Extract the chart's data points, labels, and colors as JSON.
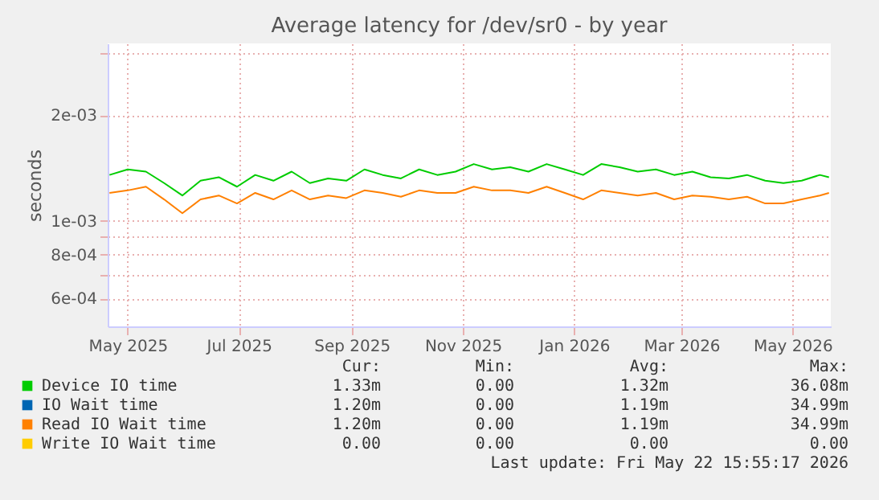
{
  "chart_data": {
    "type": "line",
    "title": "Average latency for /dev/sr0 - by year",
    "ylabel": "seconds",
    "x": [
      "2025-04-21",
      "2025-05-01",
      "2025-05-11",
      "2025-05-21",
      "2025-05-31",
      "2025-06-10",
      "2025-06-20",
      "2025-06-30",
      "2025-07-10",
      "2025-07-20",
      "2025-07-30",
      "2025-08-09",
      "2025-08-19",
      "2025-08-29",
      "2025-09-08",
      "2025-09-18",
      "2025-09-28",
      "2025-10-08",
      "2025-10-18",
      "2025-10-28",
      "2025-11-07",
      "2025-11-17",
      "2025-11-27",
      "2025-12-07",
      "2025-12-17",
      "2025-12-27",
      "2026-01-06",
      "2026-01-16",
      "2026-01-26",
      "2026-02-05",
      "2026-02-15",
      "2026-02-25",
      "2026-03-07",
      "2026-03-17",
      "2026-03-27",
      "2026-04-06",
      "2026-04-16",
      "2026-04-26",
      "2026-05-06",
      "2026-05-16",
      "2026-05-21"
    ],
    "series": [
      {
        "name": "Device IO time",
        "color": "#00cc00",
        "values": [
          0.00135,
          0.0014,
          0.00138,
          0.00128,
          0.00118,
          0.0013,
          0.00133,
          0.00125,
          0.00135,
          0.0013,
          0.00138,
          0.00128,
          0.00132,
          0.0013,
          0.0014,
          0.00135,
          0.00132,
          0.0014,
          0.00135,
          0.00138,
          0.00145,
          0.0014,
          0.00142,
          0.00138,
          0.00145,
          0.0014,
          0.00135,
          0.00145,
          0.00142,
          0.00138,
          0.0014,
          0.00135,
          0.00138,
          0.00133,
          0.00132,
          0.00135,
          0.0013,
          0.00128,
          0.0013,
          0.00135,
          0.00133
        ]
      },
      {
        "name": "IO Wait time",
        "color": "#0066b3",
        "values": [
          null,
          null,
          null,
          null,
          null,
          null,
          null,
          null,
          null,
          null,
          null,
          null,
          null,
          null,
          null,
          null,
          null,
          null,
          null,
          null,
          null,
          null,
          null,
          null,
          null,
          null,
          null,
          null,
          null,
          null,
          null,
          null,
          null,
          null,
          null,
          null,
          null,
          null,
          null,
          null,
          null
        ]
      },
      {
        "name": "Read IO Wait time",
        "color": "#ff8000",
        "values": [
          0.0012,
          0.00122,
          0.00125,
          0.00115,
          0.00105,
          0.00115,
          0.00118,
          0.00112,
          0.0012,
          0.00115,
          0.00122,
          0.00115,
          0.00118,
          0.00116,
          0.00122,
          0.0012,
          0.00117,
          0.00122,
          0.0012,
          0.0012,
          0.00125,
          0.00122,
          0.00122,
          0.0012,
          0.00125,
          0.0012,
          0.00115,
          0.00122,
          0.0012,
          0.00118,
          0.0012,
          0.00115,
          0.00118,
          0.00117,
          0.00115,
          0.00117,
          0.00112,
          0.00112,
          0.00115,
          0.00118,
          0.0012
        ]
      },
      {
        "name": "Write IO Wait time",
        "color": "#ffcc00",
        "values": [
          null,
          null,
          null,
          null,
          null,
          null,
          null,
          null,
          null,
          null,
          null,
          null,
          null,
          null,
          null,
          null,
          null,
          null,
          null,
          null,
          null,
          null,
          null,
          null,
          null,
          null,
          null,
          null,
          null,
          null,
          null,
          null,
          null,
          null,
          null,
          null,
          null,
          null,
          null,
          null,
          null
        ]
      }
    ],
    "xlim": [
      "2025-04-20",
      "2026-05-22"
    ],
    "xticks": [
      {
        "value": "2025-05-01",
        "label": "May 2025"
      },
      {
        "value": "2025-07-01",
        "label": "Jul 2025"
      },
      {
        "value": "2025-09-01",
        "label": "Sep 2025"
      },
      {
        "value": "2025-11-01",
        "label": "Nov 2025"
      },
      {
        "value": "2026-01-01",
        "label": "Jan 2026"
      },
      {
        "value": "2026-03-01",
        "label": "Mar 2026"
      },
      {
        "value": "2026-05-01",
        "label": "May 2026"
      }
    ],
    "ylim": [
      0.0005,
      0.0032
    ],
    "log": "y",
    "yticks": [
      {
        "value": 0.0006,
        "label": "6e-04"
      },
      {
        "value": 0.0007,
        "label": null
      },
      {
        "value": 0.0008,
        "label": "8e-04"
      },
      {
        "value": 0.0009,
        "label": null
      },
      {
        "value": 0.001,
        "label": "1e-03"
      },
      {
        "value": 0.002,
        "label": "2e-03"
      },
      {
        "value": 0.003,
        "label": null
      }
    ],
    "grid": true,
    "legend": "bottom",
    "annotations": [
      "Cur:",
      "Min:",
      "Avg:",
      "Max:",
      "1.33m",
      "0.00",
      "1.32m",
      "36.08m",
      "1.20m",
      "0.00",
      "1.19m",
      "34.99m",
      "1.20m",
      "0.00",
      "1.19m",
      "34.99m",
      "0.00",
      "0.00",
      "0.00",
      "0.00",
      "Last update: Fri May 22 15:55:17 2026"
    ]
  }
}
